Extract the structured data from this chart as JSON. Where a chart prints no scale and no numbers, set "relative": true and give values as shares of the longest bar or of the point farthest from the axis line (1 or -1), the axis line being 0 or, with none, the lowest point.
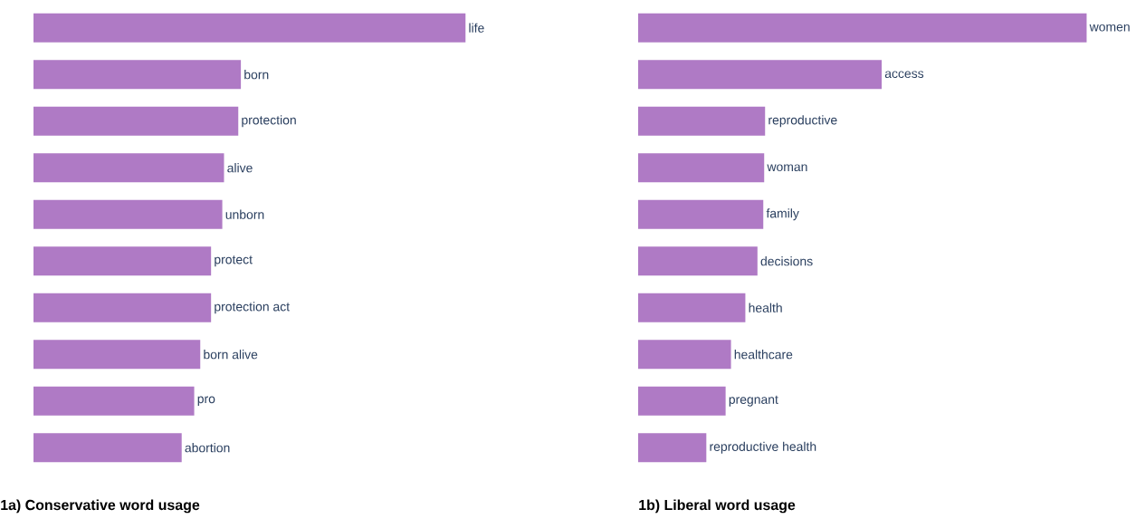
{
  "chart_data": [
    {
      "type": "bar",
      "orientation": "horizontal",
      "relative": true,
      "title": "1a) Conservative word usage",
      "color": "#af7ac5",
      "categories": [
        "life",
        "born",
        "protection",
        "alive",
        "unborn",
        "protect",
        "protection act",
        "born alive",
        "pro",
        "abortion"
      ],
      "values": [
        1,
        0.48,
        0.474,
        0.441,
        0.437,
        0.411,
        0.411,
        0.386,
        0.372,
        0.343
      ]
    },
    {
      "type": "bar",
      "orientation": "horizontal",
      "relative": true,
      "title": "1b) Liberal word usage",
      "color": "#af7ac5",
      "categories": [
        "women",
        "access",
        "reproductive",
        "woman",
        "family",
        "decisions",
        "health",
        "healthcare",
        "pregnant",
        "reproductive health"
      ],
      "values": [
        1,
        0.543,
        0.283,
        0.281,
        0.279,
        0.266,
        0.239,
        0.207,
        0.195,
        0.152
      ]
    }
  ]
}
